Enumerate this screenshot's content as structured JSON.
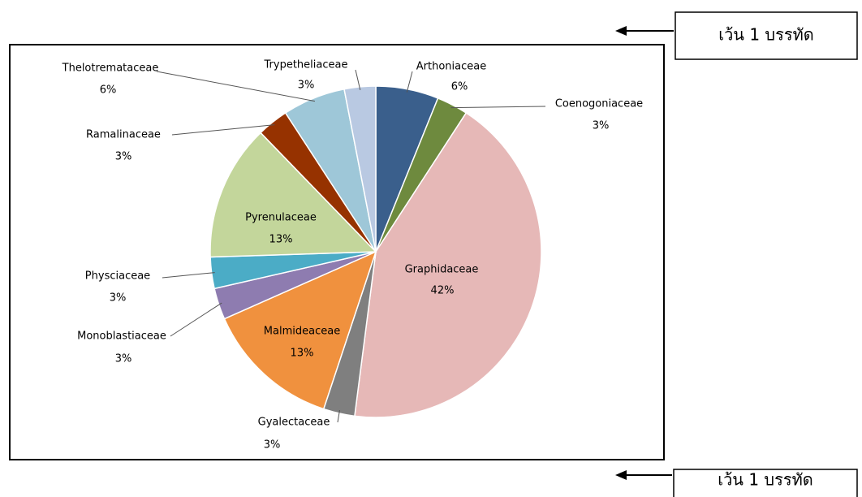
{
  "chart_data": {
    "type": "pie",
    "categories": [
      "Arthoniaceae",
      "Coenogoniaceae",
      "Graphidaceae",
      "Gyalectaceae",
      "Malmideaceae",
      "Monoblastiaceae",
      "Physciaceae",
      "Pyrenulaceae",
      "Ramalinaceae",
      "Thelotremataceae",
      "Trypetheliaceae"
    ],
    "values": [
      6,
      3,
      42,
      3,
      13,
      3,
      3,
      13,
      3,
      6,
      3
    ],
    "value_labels": [
      "6%",
      "3%",
      "42%",
      "3%",
      "13%",
      "3%",
      "3%",
      "13%",
      "3%",
      "6%",
      "3%"
    ],
    "colors": [
      "#3a5f8c",
      "#6e8a3e",
      "#e6b8b7",
      "#7f7f7f",
      "#f0913e",
      "#8e7cb0",
      "#4bacc6",
      "#c3d69b",
      "#963200",
      "#9ec7d8",
      "#b9c9e2"
    ]
  },
  "annotations": [
    "เว้น 1 บรรทัด",
    "เว้น 1 บรรทัด"
  ]
}
